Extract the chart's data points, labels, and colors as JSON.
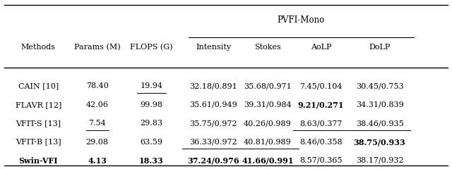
{
  "title": "PVFI-Mono",
  "figsize": [
    6.4,
    2.4
  ],
  "dpi": 100,
  "background": "#ffffff",
  "col_xs": {
    "method": 0.085,
    "params": 0.215,
    "flops": 0.335,
    "intensity": 0.472,
    "stokes": 0.592,
    "aolp": 0.71,
    "dolp": 0.84
  },
  "header_labels": {
    "method": "Methods",
    "params": "Params (M)",
    "flops": "FLOPS (G)",
    "intensity": "Intensity",
    "stokes": "Stokes",
    "aolp": "AoLP",
    "dolp": "DoLP"
  },
  "rows": [
    {
      "method": "CAIN [10]",
      "params": "78.40",
      "params_ul": false,
      "flops": "19.94",
      "flops_ul": true,
      "intensity": "32.18/0.891",
      "intensity_ul": false,
      "intensity_bold": false,
      "stokes": "35.68/0.971",
      "stokes_ul": false,
      "stokes_bold": false,
      "aolp": "7.45/0.104",
      "aolp_ul": false,
      "aolp_bold": false,
      "dolp": "30.45/0.753",
      "dolp_ul": false,
      "dolp_bold": false,
      "method_bold": false,
      "params_bold": false,
      "flops_bold": false
    },
    {
      "method": "FLAVR [12]",
      "params": "42.06",
      "params_ul": false,
      "flops": "99.98",
      "flops_ul": false,
      "intensity": "35.61/0.949",
      "intensity_ul": false,
      "intensity_bold": false,
      "stokes": "39.31/0.984",
      "stokes_ul": false,
      "stokes_bold": false,
      "aolp": "9.21/0.271",
      "aolp_ul": false,
      "aolp_bold": true,
      "dolp": "34.31/0.839",
      "dolp_ul": false,
      "dolp_bold": false,
      "method_bold": false,
      "params_bold": false,
      "flops_bold": false
    },
    {
      "method": "VFIT-S [13]",
      "params": "7.54",
      "params_ul": true,
      "flops": "29.83",
      "flops_ul": false,
      "intensity": "35.75/0.972",
      "intensity_ul": false,
      "intensity_bold": false,
      "stokes": "40.26/0.989",
      "stokes_ul": false,
      "stokes_bold": false,
      "aolp": "8.63/0.377",
      "aolp_ul": true,
      "aolp_bold": false,
      "dolp": "38.46/0.935",
      "dolp_ul": true,
      "dolp_bold": false,
      "method_bold": false,
      "params_bold": false,
      "flops_bold": false
    },
    {
      "method": "VFIT-B [13]",
      "params": "29.08",
      "params_ul": false,
      "flops": "63.59",
      "flops_ul": false,
      "intensity": "36.33/0.972",
      "intensity_ul": true,
      "intensity_bold": false,
      "stokes": "40.81/0.989",
      "stokes_ul": true,
      "stokes_bold": false,
      "aolp": "8.46/0.358",
      "aolp_ul": false,
      "aolp_bold": false,
      "dolp": "38.75/0.933",
      "dolp_ul": false,
      "dolp_bold": true,
      "method_bold": false,
      "params_bold": false,
      "flops_bold": false
    },
    {
      "method": "Swin-VFI",
      "params": "4.13",
      "params_ul": false,
      "flops": "18.33",
      "flops_ul": false,
      "intensity": "37.24/0.976",
      "intensity_ul": false,
      "intensity_bold": true,
      "stokes": "41.66/0.991",
      "stokes_ul": false,
      "stokes_bold": true,
      "aolp": "8.57/0.365",
      "aolp_ul": false,
      "aolp_bold": false,
      "dolp": "38.17/0.932",
      "dolp_ul": false,
      "dolp_bold": false,
      "method_bold": true,
      "params_bold": true,
      "flops_bold": true
    }
  ]
}
